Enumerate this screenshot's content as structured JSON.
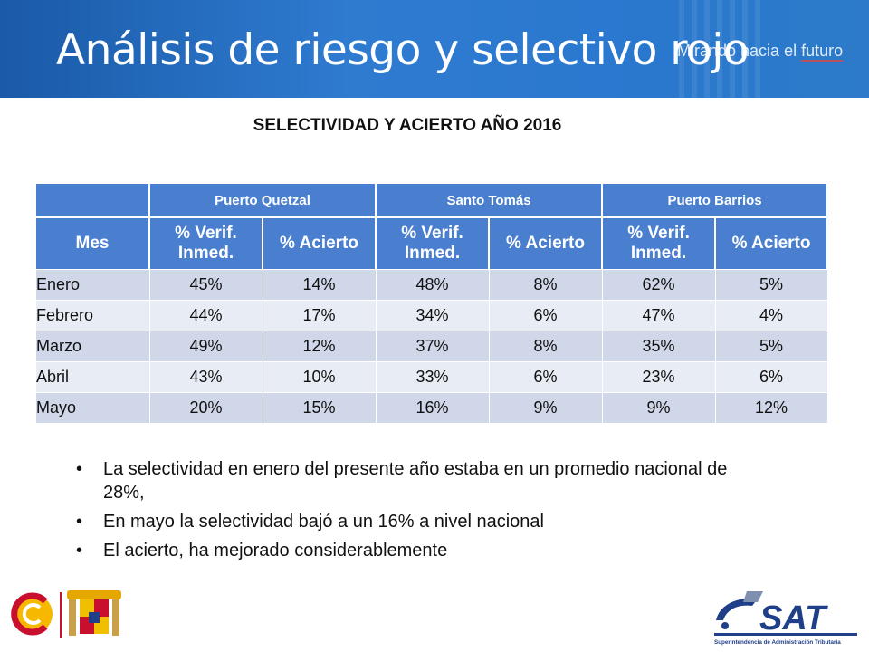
{
  "slide": {
    "title": "Análisis de riesgo y selectivo rojo",
    "tagline_prefix": "Mirando hacia el ",
    "tagline_highlight": "futuro",
    "subtitle": "SELECTIVIDAD Y ACIERTO AÑO 2016"
  },
  "table": {
    "groups": [
      "Puerto Quetzal",
      "Santo Tomás",
      "Puerto Barrios"
    ],
    "columns": [
      "Mes",
      "% Verif. Inmed.",
      "% Acierto",
      "% Verif. Inmed.",
      "% Acierto",
      "% Verif. Inmed.",
      "% Acierto"
    ],
    "rows": [
      [
        "Enero",
        "45%",
        "14%",
        "48%",
        "8%",
        "62%",
        "5%"
      ],
      [
        "Febrero",
        "44%",
        "17%",
        "34%",
        "6%",
        "47%",
        "4%"
      ],
      [
        "Marzo",
        "49%",
        "12%",
        "37%",
        "8%",
        "35%",
        "5%"
      ],
      [
        "Abril",
        "43%",
        "10%",
        "33%",
        "6%",
        "23%",
        "6%"
      ],
      [
        "Mayo",
        "20%",
        "15%",
        "16%",
        "9%",
        "9%",
        "12%"
      ]
    ]
  },
  "notes": [
    "La selectividad en enero del presente año estaba en un promedio nacional de 28%,",
    "En mayo la selectividad bajó a un 16% a nivel nacional",
    "El acierto, ha mejorado considerablemente"
  ],
  "logos": {
    "left": "spain-cooperation-logo",
    "right": "sat-logo",
    "right_text": "SAT",
    "right_caption": "Superintendencia de Administración Tributaria"
  },
  "colors": {
    "header": "#2f7bd0",
    "table_header": "#4a7fd0",
    "row_odd": "#cfd7e9",
    "row_even": "#e8ecf4",
    "brand_red": "#c8102e",
    "brand_yellow": "#f6b800",
    "sat_blue": "#1f3f88"
  }
}
